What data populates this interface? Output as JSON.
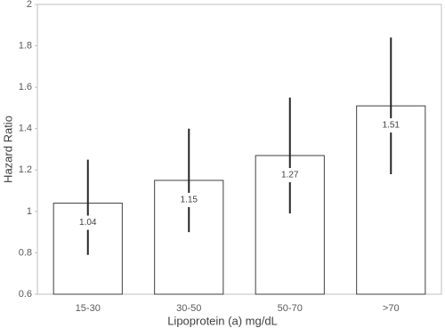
{
  "chart_data": {
    "type": "bar",
    "x_label": "Lipoprotein (a) mg/dL",
    "y_label": "Hazard Ratio",
    "categories": [
      "15-30",
      "30-50",
      "50-70",
      ">70"
    ],
    "values": [
      1.04,
      1.15,
      1.27,
      1.51
    ],
    "ci_low": [
      0.79,
      0.9,
      0.99,
      1.18
    ],
    "ci_high": [
      1.25,
      1.4,
      1.55,
      1.84
    ],
    "color": "#ffffff",
    "edge_color": "#404040",
    "error_color": "#262626",
    "ylim": [
      0.6,
      2
    ],
    "yticks": [
      0.6,
      0.8,
      1,
      1.2,
      1.4,
      1.6,
      1.8,
      2
    ],
    "grid": false
  }
}
